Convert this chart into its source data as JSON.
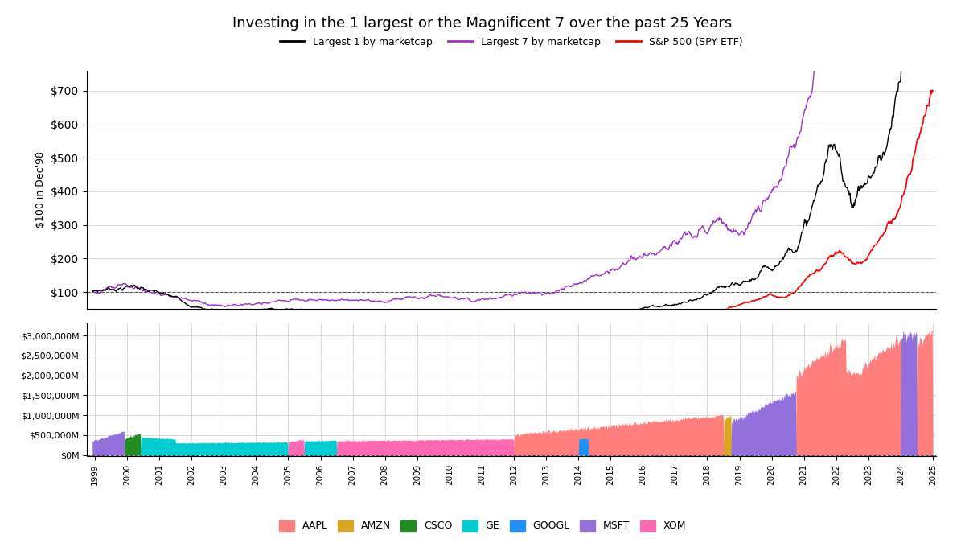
{
  "title": "Investing in the 1 largest or the Magnificent 7 over the past 25 Years",
  "legend_labels": [
    "Largest 1 by marketcap",
    "Largest 7 by marketcap",
    "S&P 500 (SPY ETF)"
  ],
  "legend_colors": [
    "black",
    "#9933cc",
    "red"
  ],
  "ylabel_top": "$100 in Dec'98",
  "top_yticks": [
    100,
    200,
    300,
    400,
    500,
    600,
    700
  ],
  "bottom_yticks": [
    0,
    500000,
    1000000,
    1500000,
    2000000,
    2500000,
    3000000
  ],
  "bar_colors": {
    "AAPL": "#FF7F7F",
    "AMZN": "#DAA520",
    "CSCO": "#228B22",
    "GE": "#00CED1",
    "GOOGL": "#1E90FF",
    "MSFT": "#9370DB",
    "XOM": "#FF69B4"
  },
  "background_color": "#ffffff",
  "grid_color": "#cccccc"
}
